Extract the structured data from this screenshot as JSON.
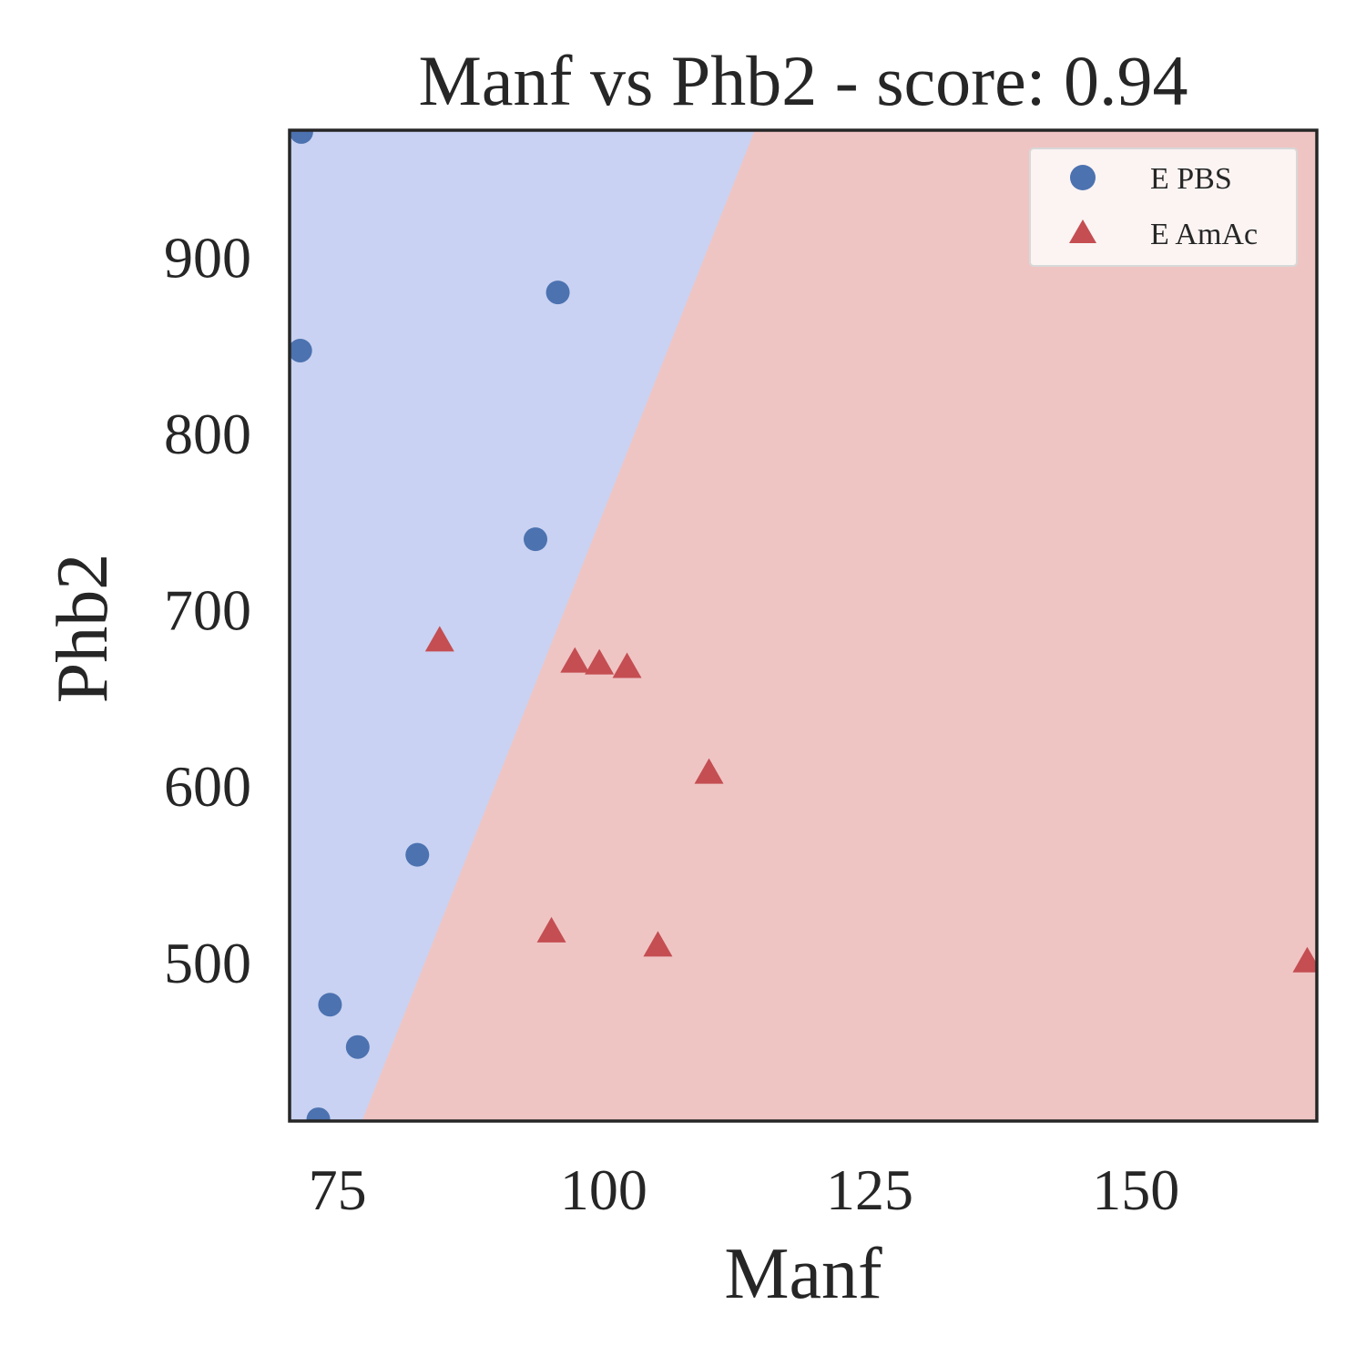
{
  "chart_data": {
    "type": "scatter",
    "title": "Manf vs Phb2 - score: 0.94",
    "xlabel": "Manf",
    "ylabel": "Phb2",
    "xlim": [
      70.5,
      167
    ],
    "ylim": [
      410,
      972
    ],
    "xticks": [
      75,
      100,
      125,
      150
    ],
    "yticks": [
      500,
      600,
      700,
      800,
      900
    ],
    "grid": false,
    "legend_position": "top-right",
    "decision_regions": {
      "boundary_line": [
        [
          77.3,
          410
        ],
        [
          114.2,
          972
        ]
      ],
      "left_region_class": "E PBS",
      "right_region_class": "E AmAc",
      "left_color": "#c9d2f2",
      "right_color": "#efc5c4"
    },
    "series": [
      {
        "name": "E PBS",
        "marker": "circle",
        "color": "#4c72b0",
        "points": [
          {
            "x": 71.6,
            "y": 971
          },
          {
            "x": 71.5,
            "y": 847
          },
          {
            "x": 95.7,
            "y": 880
          },
          {
            "x": 93.6,
            "y": 740
          },
          {
            "x": 82.5,
            "y": 561
          },
          {
            "x": 74.3,
            "y": 476
          },
          {
            "x": 76.9,
            "y": 452
          },
          {
            "x": 73.2,
            "y": 411
          }
        ]
      },
      {
        "name": "E AmAc",
        "marker": "triangle",
        "color": "#c44e52",
        "points": [
          {
            "x": 84.6,
            "y": 682
          },
          {
            "x": 97.3,
            "y": 670
          },
          {
            "x": 99.6,
            "y": 669
          },
          {
            "x": 102.2,
            "y": 667
          },
          {
            "x": 109.9,
            "y": 607
          },
          {
            "x": 95.1,
            "y": 517
          },
          {
            "x": 105.1,
            "y": 509
          },
          {
            "x": 166.1,
            "y": 500
          }
        ]
      }
    ]
  }
}
